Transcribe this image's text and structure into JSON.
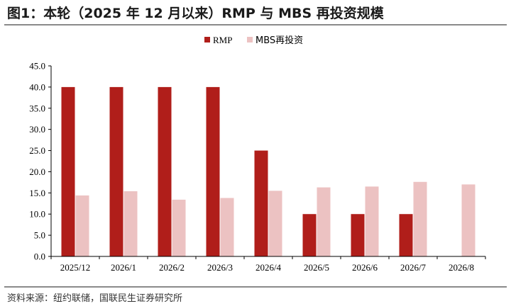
{
  "title": "图1：本轮（2025 年 12 月以来）RMP 与 MBS 再投资规模",
  "source": "资料来源：纽约联储，国联民生证券研究所",
  "chart_data": {
    "type": "bar",
    "categories": [
      "2025/12",
      "2026/1",
      "2026/2",
      "2026/3",
      "2026/4",
      "2026/5",
      "2026/6",
      "2026/7",
      "2026/8"
    ],
    "series": [
      {
        "name": "RMP",
        "color": "#b01e1a",
        "values": [
          40,
          40,
          40,
          40,
          25,
          10,
          10,
          10,
          null
        ]
      },
      {
        "name": "MBS再投资",
        "color": "#ecc2c2",
        "values": [
          14.4,
          15.4,
          13.4,
          13.8,
          15.5,
          16.3,
          16.5,
          17.6,
          17.0
        ]
      }
    ],
    "ylim": [
      0,
      45
    ],
    "yticks": [
      "0.0",
      "5.0",
      "10.0",
      "15.0",
      "20.0",
      "25.0",
      "30.0",
      "35.0",
      "40.0",
      "45.0"
    ],
    "legend_position": "top-center",
    "grid": false
  }
}
